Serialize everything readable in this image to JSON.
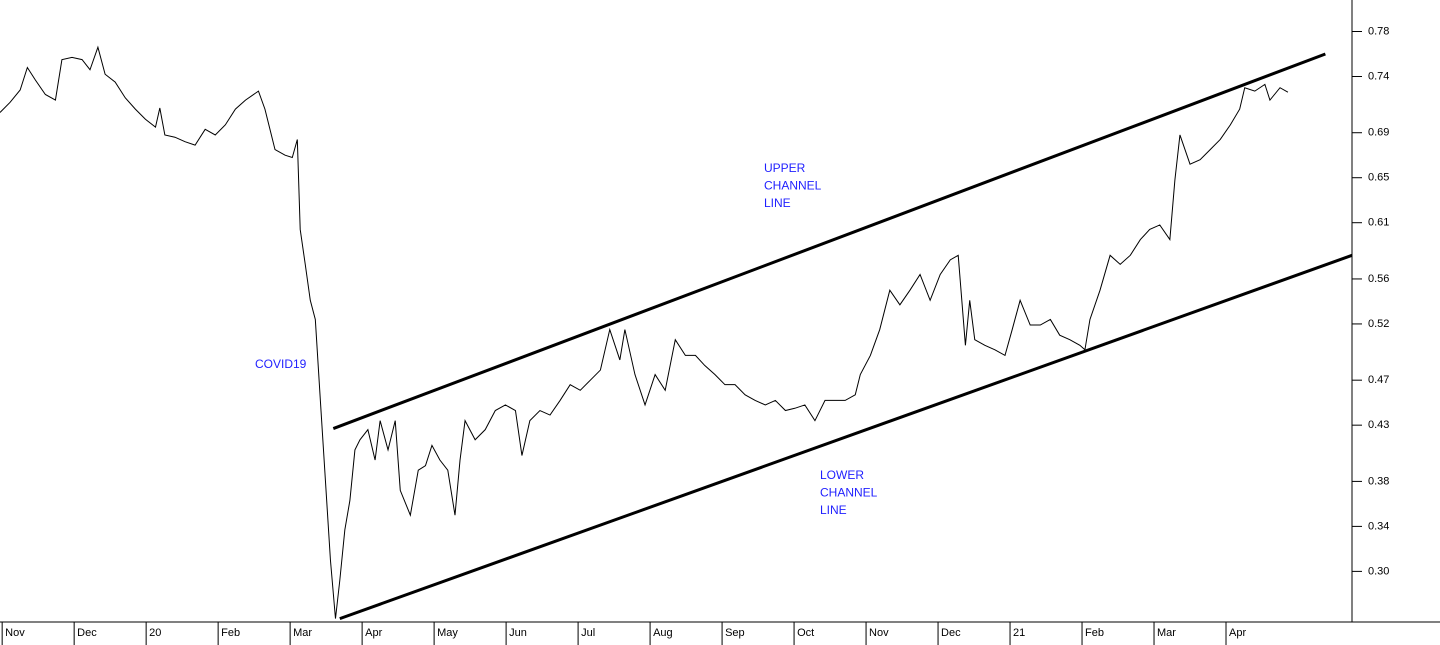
{
  "chart_data": {
    "type": "line",
    "color": "#000000",
    "x": [
      -0.03,
      0.11,
      0.25,
      0.35,
      0.46,
      0.6,
      0.74,
      0.83,
      0.97,
      1.11,
      1.22,
      1.33,
      1.43,
      1.57,
      1.71,
      1.85,
      1.99,
      2.13,
      2.19,
      2.26,
      2.4,
      2.54,
      2.68,
      2.82,
      2.96,
      3.1,
      3.24,
      3.38,
      3.56,
      3.65,
      3.79,
      3.93,
      4.03,
      4.1,
      4.14,
      4.21,
      4.28,
      4.35,
      4.42,
      4.49,
      4.56,
      4.63,
      4.69,
      4.76,
      4.83,
      4.9,
      4.97,
      5.08,
      5.18,
      5.25,
      5.36,
      5.46,
      5.53,
      5.67,
      5.78,
      5.88,
      5.97,
      6.08,
      6.19,
      6.29,
      6.36,
      6.43,
      6.57,
      6.71,
      6.85,
      6.99,
      7.13,
      7.22,
      7.33,
      7.47,
      7.61,
      7.75,
      7.89,
      8.03,
      8.17,
      8.31,
      8.44,
      8.58,
      8.65,
      8.79,
      8.93,
      9.07,
      9.21,
      9.35,
      9.49,
      9.63,
      9.76,
      9.9,
      10.04,
      10.18,
      10.32,
      10.46,
      10.6,
      10.74,
      10.88,
      11.01,
      11.15,
      11.29,
      11.43,
      11.57,
      11.71,
      11.85,
      11.92,
      12.06,
      12.19,
      12.33,
      12.47,
      12.61,
      12.75,
      12.89,
      13.03,
      13.17,
      13.28,
      13.38,
      13.44,
      13.51,
      13.65,
      13.79,
      13.93,
      14.03,
      14.14,
      14.28,
      14.42,
      14.56,
      14.69,
      14.83,
      14.97,
      15.04,
      15.11,
      15.25,
      15.39,
      15.53,
      15.67,
      15.81,
      15.94,
      16.08,
      16.22,
      16.29,
      16.36,
      16.5,
      16.64,
      16.78,
      16.92,
      17.06,
      17.19,
      17.26,
      17.4,
      17.54,
      17.61,
      17.75,
      17.86
    ],
    "values": [
      0.708,
      0.717,
      0.728,
      0.748,
      0.737,
      0.724,
      0.719,
      0.755,
      0.757,
      0.755,
      0.746,
      0.766,
      0.742,
      0.735,
      0.721,
      0.711,
      0.702,
      0.695,
      0.712,
      0.688,
      0.686,
      0.682,
      0.679,
      0.693,
      0.688,
      0.697,
      0.711,
      0.719,
      0.727,
      0.711,
      0.675,
      0.67,
      0.668,
      0.684,
      0.604,
      0.573,
      0.541,
      0.524,
      0.452,
      0.381,
      0.31,
      0.258,
      0.292,
      0.337,
      0.363,
      0.408,
      0.417,
      0.426,
      0.399,
      0.434,
      0.408,
      0.434,
      0.372,
      0.35,
      0.39,
      0.394,
      0.412,
      0.399,
      0.39,
      0.35,
      0.399,
      0.434,
      0.417,
      0.426,
      0.443,
      0.448,
      0.443,
      0.403,
      0.434,
      0.443,
      0.439,
      0.452,
      0.466,
      0.461,
      0.47,
      0.479,
      0.515,
      0.488,
      0.515,
      0.475,
      0.448,
      0.475,
      0.461,
      0.506,
      0.492,
      0.492,
      0.483,
      0.475,
      0.466,
      0.466,
      0.457,
      0.452,
      0.448,
      0.452,
      0.443,
      0.445,
      0.448,
      0.434,
      0.452,
      0.452,
      0.452,
      0.457,
      0.475,
      0.492,
      0.515,
      0.55,
      0.537,
      0.55,
      0.564,
      0.541,
      0.564,
      0.577,
      0.581,
      0.501,
      0.541,
      0.506,
      0.501,
      0.497,
      0.492,
      0.515,
      0.541,
      0.519,
      0.519,
      0.524,
      0.51,
      0.506,
      0.501,
      0.497,
      0.524,
      0.55,
      0.581,
      0.573,
      0.581,
      0.595,
      0.604,
      0.608,
      0.595,
      0.648,
      0.688,
      0.662,
      0.666,
      0.675,
      0.684,
      0.697,
      0.711,
      0.73,
      0.727,
      0.733,
      0.719,
      0.73,
      0.726
    ],
    "trend_lines": [
      {
        "x": [
          4.6,
          18.38
        ],
        "values": [
          0.427,
          0.76
        ]
      },
      {
        "x": [
          4.69,
          18.75
        ],
        "values": [
          0.258,
          0.581
        ]
      }
    ],
    "annotations": [
      {
        "lines": [
          "COVID19"
        ]
      },
      {
        "lines": [
          "UPPER",
          "CHANNEL",
          "LINE"
        ]
      },
      {
        "lines": [
          "LOWER",
          "CHANNEL",
          "LINE"
        ]
      }
    ],
    "annotation_color": "#1f1fff",
    "xlim": [
      -0.03,
      18.75
    ],
    "xticks": [
      {
        "value": 0,
        "label": "Nov"
      },
      {
        "value": 1,
        "label": "Dec"
      },
      {
        "value": 2,
        "label": "20"
      },
      {
        "value": 3,
        "label": "Feb"
      },
      {
        "value": 4,
        "label": "Mar"
      },
      {
        "value": 5,
        "label": "Apr"
      },
      {
        "value": 6,
        "label": "May"
      },
      {
        "value": 7,
        "label": "Jun"
      },
      {
        "value": 8,
        "label": "Jul"
      },
      {
        "value": 9,
        "label": "Aug"
      },
      {
        "value": 10,
        "label": "Sep"
      },
      {
        "value": 11,
        "label": "Oct"
      },
      {
        "value": 12,
        "label": "Nov"
      },
      {
        "value": 13,
        "label": "Dec"
      },
      {
        "value": 14,
        "label": "21"
      },
      {
        "value": 15,
        "label": "Feb"
      },
      {
        "value": 16,
        "label": "Mar"
      },
      {
        "value": 17,
        "label": "Apr"
      }
    ],
    "ylim": [
      0.255,
      0.808
    ],
    "yticks": [
      {
        "value": 0.3,
        "label": "0.30"
      },
      0.34,
      0.38,
      0.43,
      0.47,
      0.52,
      0.56,
      0.61,
      0.65,
      0.69,
      0.74,
      0.78
    ]
  }
}
